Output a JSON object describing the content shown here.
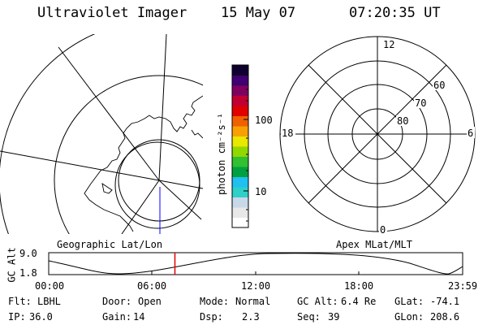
{
  "header": {
    "instrument": "Ultraviolet Imager",
    "date": "15 May 07",
    "time": "07:20:35 UT"
  },
  "left_map": {
    "title": "Geographic Lat/Lon"
  },
  "right_map": {
    "title": "Apex MLat/MLT",
    "mlt_labels": {
      "top": "12",
      "left": "18",
      "right": "6",
      "bottom": "0"
    },
    "mlat_labels": [
      "60",
      "70",
      "80"
    ]
  },
  "colorbar": {
    "unit": "photon cm⁻²s⁻¹",
    "tick_labels": [
      "100",
      "10"
    ],
    "scale": "log",
    "colors": [
      "#ffffff",
      "#e8e8e8",
      "#c8d8e8",
      "#30d0c8",
      "#20c0f0",
      "#00a040",
      "#30c030",
      "#90d800",
      "#e8e800",
      "#f8a000",
      "#f06000",
      "#e00000",
      "#c00030",
      "#800060",
      "#400070",
      "#100030"
    ]
  },
  "altitude_plot": {
    "ylabel": "GC Alt",
    "y_ticks": [
      "9.0",
      "1.8"
    ],
    "x_ticks": [
      "00:00",
      "06:00",
      "12:00",
      "18:00",
      "23:59"
    ],
    "marker_time_fraction": 0.305
  },
  "info": {
    "row1": {
      "filter_label": "Flt:",
      "filter_value": "LBHL",
      "door_label": "Door:",
      "door_value": "Open",
      "mode_label": "Mode:",
      "mode_value": "Normal",
      "alt_label": "GC Alt:",
      "alt_value": "6.4 Re",
      "glat_label": "GLat:",
      "glat_value": "-74.1"
    },
    "row2": {
      "ip_label": "IP:",
      "ip_value": "36.0",
      "gain_label": "Gain:",
      "gain_value": "14",
      "dsp_label": "Dsp:",
      "dsp_value": "2.3",
      "seq_label": "Seq:",
      "seq_value": "39",
      "glon_label": "GLon:",
      "glon_value": "208.6"
    }
  },
  "colors": {
    "marker": "#e00000",
    "nadir_line": "#0000ff"
  }
}
